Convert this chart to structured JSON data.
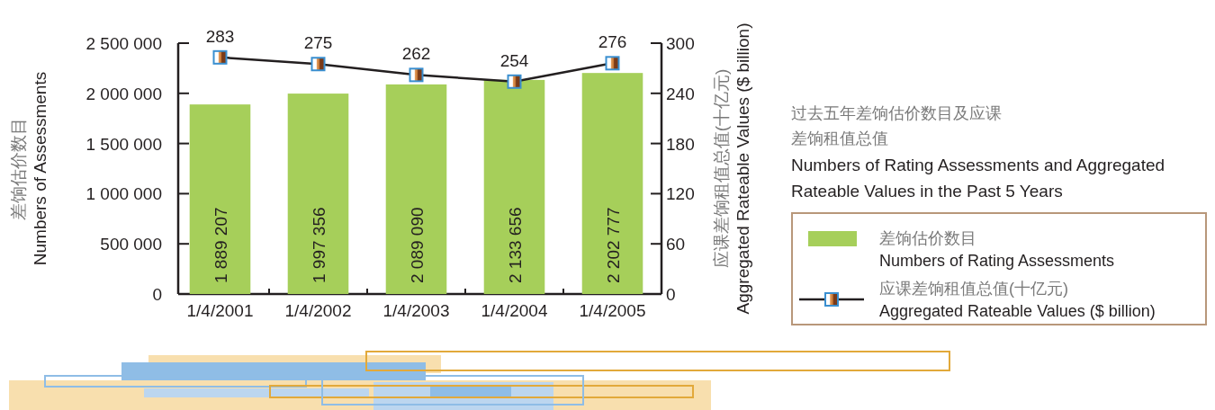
{
  "chart_data": {
    "type": "bar",
    "title": "过去五年差饷估价数目及应课差饷租值总值",
    "subtitle": "Numbers of Rating Assessments and Aggregated\nRateable Values in the Past 5 Years",
    "ylabel": "差饷估价数目\nNumbers of Assessments",
    "y2label": "应课差饷租值总值(十亿元)\nAggregated Rateable Values ($ billion)",
    "categories": [
      "1/4/2001",
      "1/4/2002",
      "1/4/2003",
      "1/4/2004",
      "1/4/2005"
    ],
    "series": [
      {
        "name": "差饷估价数目\nNumbers of Rating Assessments",
        "color": "#a6cf5a",
        "values": [
          1889207,
          1997356,
          2089090,
          2133656,
          2202777
        ],
        "value_labels": [
          "1 889 207",
          "1 997 356",
          "2 089 090",
          "2 133 656",
          "2 202 777"
        ]
      },
      {
        "name": "应课差饷租值总值(十亿元)\nAggregated Rateable Values ($ billion)",
        "type": "line",
        "axis": "y2",
        "color": "#231f20",
        "marker": "square",
        "values": [
          283,
          275,
          262,
          254,
          276
        ],
        "value_labels": [
          "283",
          "275",
          "262",
          "254",
          "276"
        ]
      }
    ],
    "ylim": [
      0,
      2500000
    ],
    "yticks": [
      0,
      {
        "value": 500000,
        "label": "500 000"
      },
      {
        "value": 1000000,
        "label": "1 000 000"
      },
      {
        "value": 1500000,
        "label": "1 500 000"
      },
      {
        "value": 2000000,
        "label": "2 000 000"
      },
      {
        "value": 2500000,
        "label": "2 500 000"
      }
    ],
    "y2lim": [
      0,
      300
    ],
    "y2ticks": [
      0,
      60,
      120,
      180,
      240,
      300
    ],
    "legend": "right"
  }
}
